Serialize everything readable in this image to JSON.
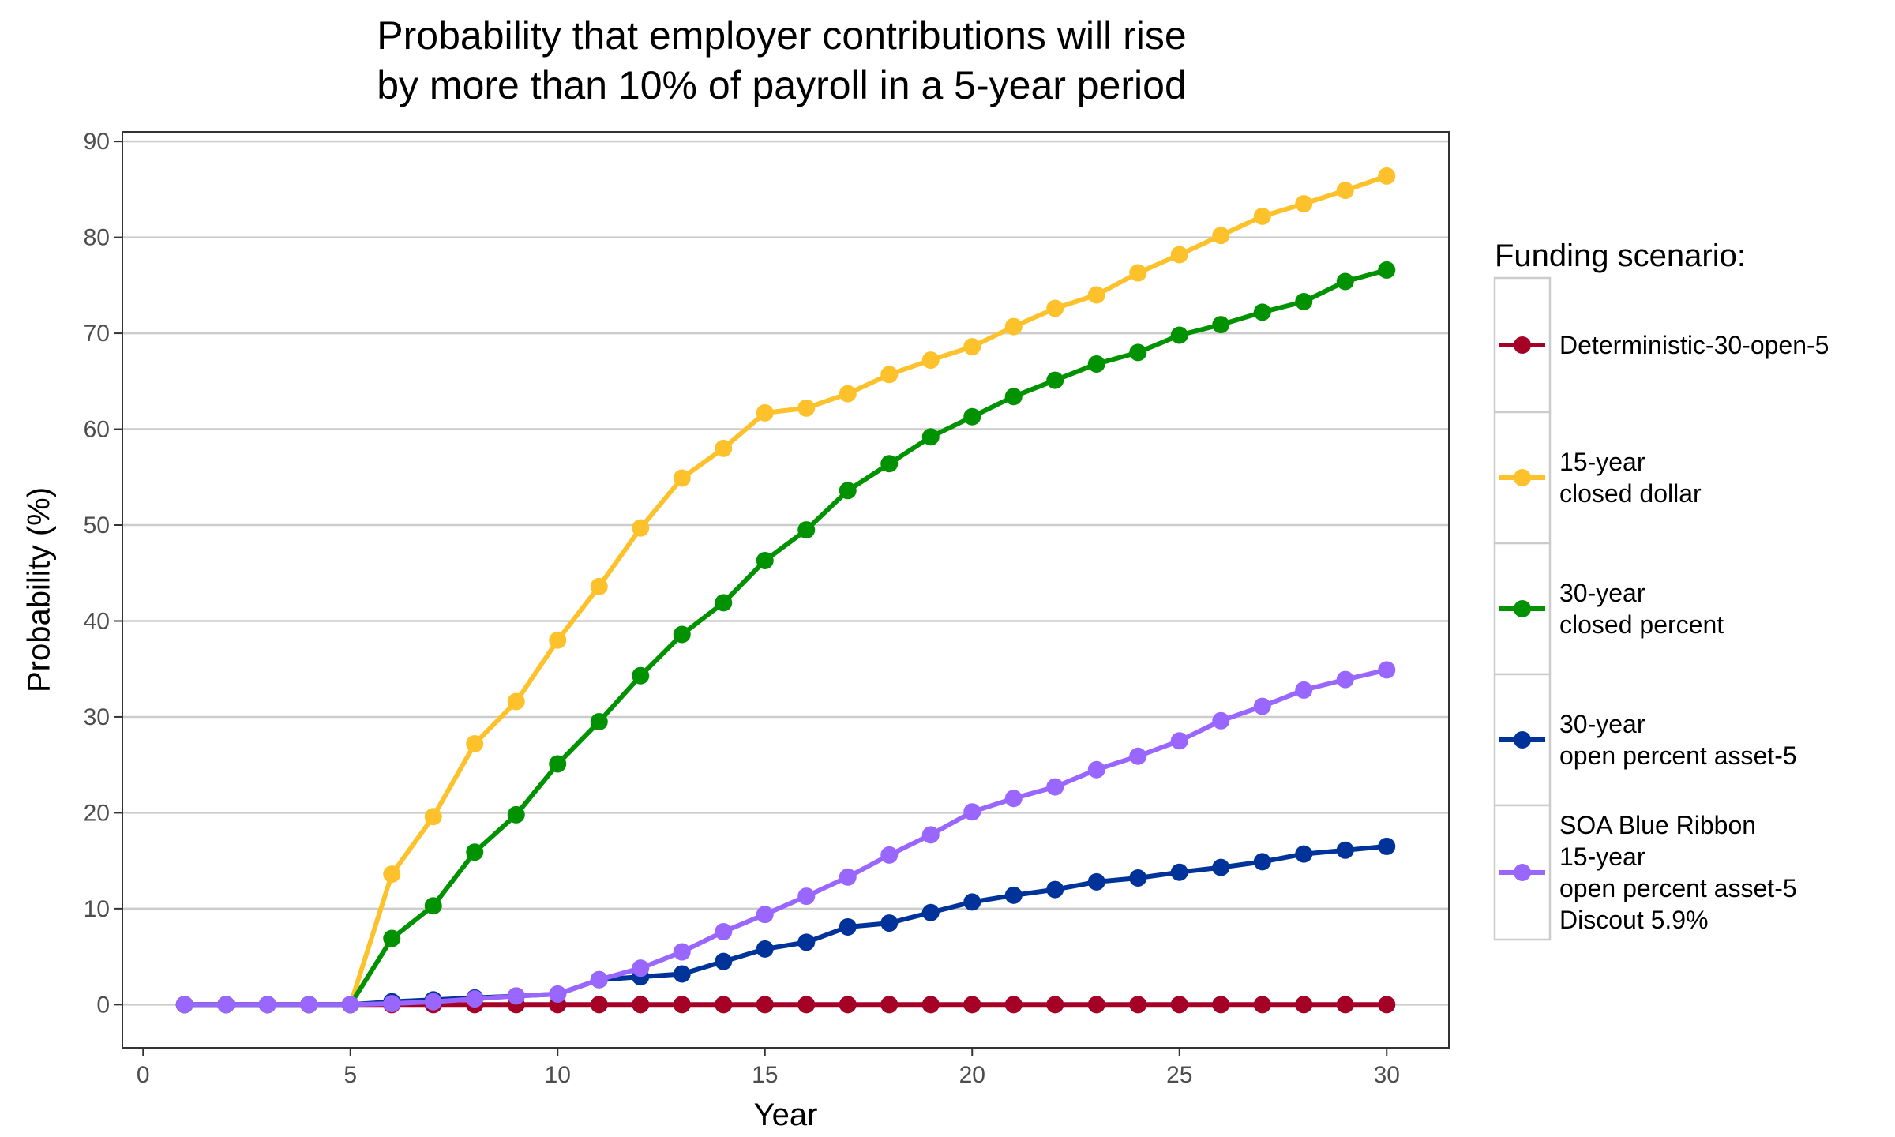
{
  "chart_data": {
    "type": "line",
    "title_lines": [
      "Probability that employer contributions will rise",
      "by more than 10% of payroll in a 5-year period"
    ],
    "xlabel": "Year",
    "ylabel": "Probability (%)",
    "xlim": [
      -0.5,
      31.5
    ],
    "ylim": [
      -4.5,
      91
    ],
    "x_ticks": [
      0,
      5,
      10,
      15,
      20,
      25,
      30
    ],
    "y_ticks": [
      0,
      10,
      20,
      30,
      40,
      50,
      60,
      70,
      80,
      90
    ],
    "grid": "horizontal major",
    "legend": {
      "title": "Funding scenario:",
      "placement": "right",
      "entries": [
        {
          "series": 0,
          "lines": [
            "Deterministic-30-open-5"
          ]
        },
        {
          "series": 1,
          "lines": [
            "15-year",
            "closed dollar"
          ]
        },
        {
          "series": 2,
          "lines": [
            "30-year",
            "closed percent"
          ]
        },
        {
          "series": 3,
          "lines": [
            "30-year",
            "open percent asset-5"
          ]
        },
        {
          "series": 4,
          "lines": [
            "SOA Blue Ribbon",
            "15-year",
            "open percent asset-5",
            "Discout 5.9%"
          ]
        }
      ]
    },
    "x": [
      1,
      2,
      3,
      4,
      5,
      6,
      7,
      8,
      9,
      10,
      11,
      12,
      13,
      14,
      15,
      16,
      17,
      18,
      19,
      20,
      21,
      22,
      23,
      24,
      25,
      26,
      27,
      28,
      29,
      30
    ],
    "series": [
      {
        "name": "Deterministic-30-open-5",
        "color": "#A50026",
        "values": [
          0,
          0,
          0,
          0,
          0,
          0,
          0,
          0,
          0,
          0,
          0,
          0,
          0,
          0,
          0,
          0,
          0,
          0,
          0,
          0,
          0,
          0,
          0,
          0,
          0,
          0,
          0,
          0,
          0,
          0
        ]
      },
      {
        "name": "15-year closed dollar",
        "color": "#FDC22B",
        "values": [
          0,
          0,
          0,
          0,
          0,
          13.6,
          19.6,
          27.2,
          31.6,
          38,
          43.6,
          49.7,
          54.9,
          58,
          61.7,
          62.2,
          63.7,
          65.7,
          67.2,
          68.6,
          70.7,
          72.6,
          74,
          76.3,
          78.2,
          80.2,
          82.2,
          83.5,
          84.9,
          86.4
        ]
      },
      {
        "name": "30-year closed percent",
        "color": "#009200",
        "values": [
          0,
          0,
          0,
          0,
          0,
          6.9,
          10.3,
          15.9,
          19.8,
          25.1,
          29.5,
          34.3,
          38.6,
          41.9,
          46.3,
          49.5,
          53.6,
          56.4,
          59.2,
          61.3,
          63.4,
          65.1,
          66.8,
          68,
          69.8,
          70.9,
          72.2,
          73.3,
          75.4,
          76.6
        ]
      },
      {
        "name": "30-year open percent asset-5",
        "color": "#003399",
        "values": [
          0,
          0,
          0,
          0,
          0,
          0.3,
          0.5,
          0.7,
          0.9,
          1.1,
          2.6,
          2.9,
          3.2,
          4.5,
          5.8,
          6.5,
          8.1,
          8.5,
          9.6,
          10.7,
          11.4,
          12,
          12.8,
          13.2,
          13.8,
          14.3,
          14.9,
          15.7,
          16.1,
          16.5
        ]
      },
      {
        "name": "SOA Blue Ribbon 15-year open percent asset-5 Discout 5.9%",
        "color": "#9966FF",
        "values": [
          0,
          0,
          0,
          0,
          0,
          0.1,
          0.3,
          0.6,
          0.9,
          1.1,
          2.6,
          3.8,
          5.5,
          7.6,
          9.4,
          11.3,
          13.3,
          15.6,
          17.7,
          20.1,
          21.5,
          22.7,
          24.5,
          25.9,
          27.5,
          29.6,
          31.1,
          32.8,
          33.9,
          34.9
        ]
      }
    ]
  }
}
